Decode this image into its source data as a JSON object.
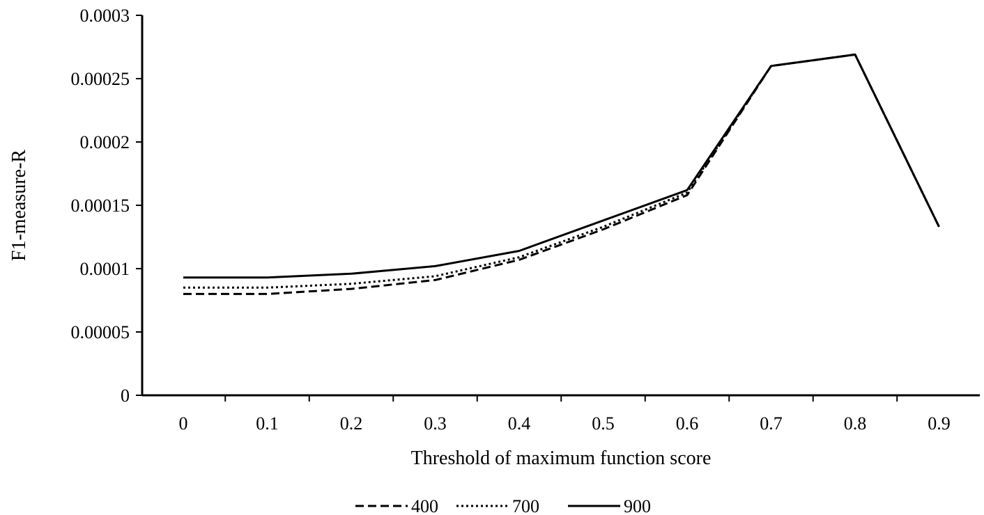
{
  "chart_data": {
    "type": "line",
    "title": "",
    "xlabel": "Threshold of maximum function score",
    "ylabel": "F1-measure-R",
    "categories": [
      "0",
      "0.1",
      "0.2",
      "0.3",
      "0.4",
      "0.5",
      "0.6",
      "0.7",
      "0.8",
      "0.9"
    ],
    "ylim": [
      0,
      0.0003
    ],
    "yticks": [
      "0",
      "0.00005",
      "0.0001",
      "0.00015",
      "0.0002",
      "0.00025",
      "0.0003"
    ],
    "grid": false,
    "legend_position": "bottom",
    "series": [
      {
        "name": "400",
        "style": "dashed",
        "color": "#000000",
        "values": [
          8e-05,
          8e-05,
          8.4e-05,
          9.1e-05,
          0.000107,
          0.000131,
          0.000158,
          0.00026,
          0.000269,
          0.000133
        ]
      },
      {
        "name": "700",
        "style": "dotted",
        "color": "#000000",
        "values": [
          8.5e-05,
          8.5e-05,
          8.8e-05,
          9.4e-05,
          0.000109,
          0.000133,
          0.00016,
          0.00026,
          0.000269,
          0.000133
        ]
      },
      {
        "name": "900",
        "style": "solid",
        "color": "#000000",
        "values": [
          9.3e-05,
          9.3e-05,
          9.6e-05,
          0.000102,
          0.000114,
          0.000138,
          0.000162,
          0.00026,
          0.000269,
          0.000133
        ]
      }
    ]
  }
}
